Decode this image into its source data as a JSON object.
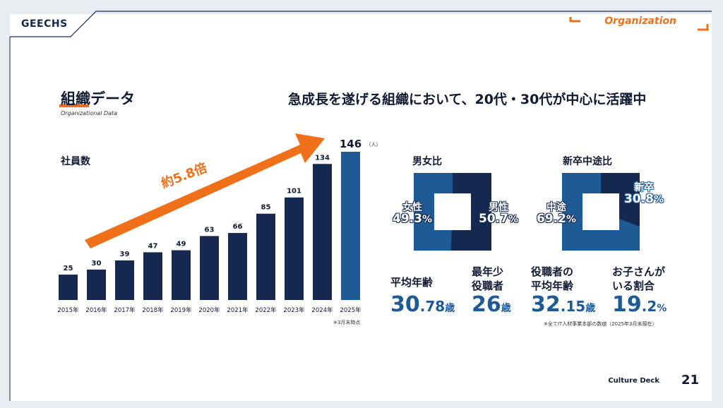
{
  "header": {
    "logo": "GEECHS",
    "section": "Organization"
  },
  "page": {
    "title": "組織データ",
    "subtitle": "Organizational Data",
    "headline": "急成長を遂げる組織において、20代・30代が中心に活躍中"
  },
  "chart_data": [
    {
      "type": "bar",
      "title": "社員数",
      "categories": [
        "2015年",
        "2016年",
        "2017年",
        "2018年",
        "2019年",
        "2020年",
        "2021年",
        "2022年",
        "2023年",
        "2024年",
        "2025年"
      ],
      "values": [
        25,
        30,
        39,
        47,
        49,
        63,
        66,
        85,
        101,
        134,
        146
      ],
      "unit": "（人）",
      "highlight_index": 10,
      "annotation": "約5.8倍",
      "note": "※3月末時点",
      "colors": {
        "bar": "#15284f",
        "highlight": "#1e5a96",
        "arrow": "#f07019"
      }
    },
    {
      "type": "pie",
      "title": "男女比",
      "slices": [
        {
          "label": "女性",
          "value": 49.3,
          "display": "49.3",
          "color": "#1e5a96"
        },
        {
          "label": "男性",
          "value": 50.7,
          "display": "50.7",
          "color": "#15284f"
        }
      ]
    },
    {
      "type": "pie",
      "title": "新卒中途比",
      "slices": [
        {
          "label": "中途",
          "value": 69.2,
          "display": "69.2",
          "color": "#1e5a96"
        },
        {
          "label": "新卒",
          "value": 30.8,
          "display": "30.8",
          "color": "#15284f"
        }
      ]
    }
  ],
  "stats": [
    {
      "label": "平均年齢",
      "int": "30",
      "dec": ".78",
      "unit": "歳"
    },
    {
      "label1": "最年少",
      "label2": "役職者",
      "int": "26",
      "dec": "",
      "unit": "歳"
    },
    {
      "label1": "役職者の",
      "label2": "平均年齢",
      "int": "32",
      "dec": ".15",
      "unit": "歳"
    },
    {
      "label1": "お子さんが",
      "label2": "いる割合",
      "int": "19",
      "dec": ".2",
      "unit": "%"
    }
  ],
  "stats_note": "※全てIT人材事業本部の数値（2025年3月末現在）",
  "footer": {
    "deck": "Culture Deck",
    "page_number": "21"
  }
}
